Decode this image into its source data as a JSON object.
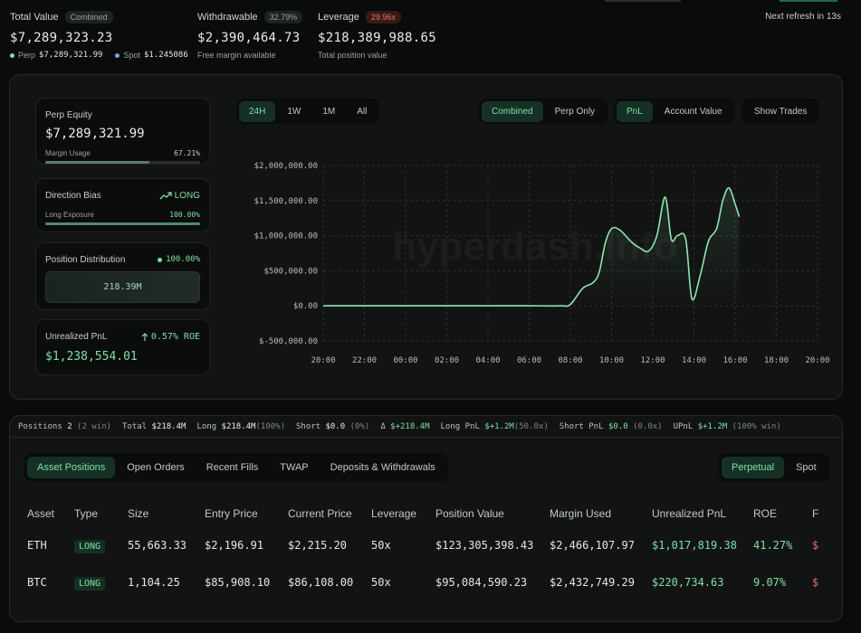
{
  "header": {
    "total_value": {
      "label": "Total Value",
      "badge": "Combined",
      "value": "$7,289,323.23",
      "perp_label": "Perp",
      "perp_value": "$7,289,321.99",
      "spot_label": "Spot",
      "spot_value": "$1.245086"
    },
    "withdrawable": {
      "label": "Withdrawable",
      "badge": "32.79%",
      "value": "$2,390,464.73",
      "note": "Free margin available"
    },
    "leverage": {
      "label": "Leverage",
      "badge": "29.96x",
      "value": "$218,389,988.65",
      "note": "Total position value"
    },
    "refresh": "Next refresh in 13s"
  },
  "panels": {
    "perp_equity": {
      "label": "Perp Equity",
      "value": "$7,289,321.99",
      "margin_label": "Margin Usage",
      "margin_pct": "67.21%",
      "margin_fraction": 0.6721
    },
    "direction": {
      "label": "Direction Bias",
      "value": "LONG",
      "exposure_label": "Long Exposure",
      "exposure_pct": "100.00%",
      "exposure_fraction": 1.0
    },
    "distribution": {
      "label": "Position Distribution",
      "pct": "100.00%",
      "value": "218.39M"
    },
    "upnl": {
      "label": "Unrealized PnL",
      "roe": "0.57% ROE",
      "value": "$1,238,554.01"
    }
  },
  "chart_controls": {
    "ranges": [
      "24H",
      "1W",
      "1M",
      "All"
    ],
    "modes": [
      "Combined",
      "Perp Only"
    ],
    "metrics": [
      "PnL",
      "Account Value"
    ],
    "show_trades": "Show Trades"
  },
  "watermark": "hyperdash.info",
  "chart_data": {
    "type": "line",
    "x": [
      "20:00",
      "22:00",
      "00:00",
      "02:00",
      "04:00",
      "06:00",
      "08:00",
      "10:00",
      "12:00",
      "14:00",
      "16:00",
      "18:00",
      "20:00"
    ],
    "ylim": [
      -500000,
      2000000
    ],
    "yticks": [
      2000000,
      1500000,
      1000000,
      500000,
      0,
      -500000
    ],
    "ytick_labels": [
      "$2,000,000.00",
      "$1,500,000.00",
      "$1,000,000.00",
      "$500,000.00",
      "$0.00",
      "$-500,000.00"
    ],
    "series": [
      {
        "color": "#8ee6b0",
        "points": [
          [
            0,
            0
          ],
          [
            4,
            0
          ],
          [
            8,
            0
          ],
          [
            10,
            0
          ],
          [
            11.5,
            0
          ],
          [
            12,
            20000
          ],
          [
            12.6,
            250000
          ],
          [
            13.1,
            330000
          ],
          [
            13.4,
            480000
          ],
          [
            13.7,
            900000
          ],
          [
            14,
            1100000
          ],
          [
            14.4,
            1080000
          ],
          [
            15,
            900000
          ],
          [
            15.4,
            820000
          ],
          [
            15.8,
            780000
          ],
          [
            16.2,
            1000000
          ],
          [
            16.6,
            1550000
          ],
          [
            16.9,
            950000
          ],
          [
            17.2,
            1000000
          ],
          [
            17.6,
            950000
          ],
          [
            17.9,
            100000
          ],
          [
            18.3,
            430000
          ],
          [
            18.7,
            920000
          ],
          [
            19.1,
            1100000
          ],
          [
            19.4,
            1500000
          ],
          [
            19.7,
            1680000
          ],
          [
            20,
            1450000
          ],
          [
            20.2,
            1270000
          ]
        ]
      }
    ]
  },
  "summary": {
    "positions_label": "Positions",
    "positions_count": "2",
    "positions_win": "(2 win)",
    "total_label": "Total",
    "total_value": "$218.4M",
    "long_label": "Long",
    "long_value": "$218.4M",
    "long_pct": "(100%)",
    "short_label": "Short",
    "short_value": "$0.0",
    "short_pct": "(0%)",
    "delta_label": "Δ",
    "delta_value": "$+218.4M",
    "longpnl_label": "Long PnL",
    "longpnl_value": "$+1.2M",
    "longpnl_x": "(50.0x)",
    "shortpnl_label": "Short PnL",
    "shortpnl_value": "$0.0",
    "shortpnl_x": "(0.0x)",
    "upnl_label": "UPnL",
    "upnl_value": "$+1.2M",
    "upnl_win": "(100% win)"
  },
  "tabs": [
    "Asset Positions",
    "Open Orders",
    "Recent Fills",
    "TWAP",
    "Deposits & Withdrawals"
  ],
  "market_tabs": [
    "Perpetual",
    "Spot"
  ],
  "table": {
    "columns": [
      "Asset",
      "Type",
      "Size",
      "Entry Price",
      "Current Price",
      "Leverage",
      "Position Value",
      "Margin Used",
      "Unrealized PnL",
      "ROE",
      "F"
    ],
    "rows": [
      [
        "ETH",
        "LONG",
        "55,663.33",
        "$2,196.91",
        "$2,215.20",
        "50x",
        "$123,305,398.43",
        "$2,466,107.97",
        "$1,017,819.38",
        "41.27%",
        "$"
      ],
      [
        "BTC",
        "LONG",
        "1,104.25",
        "$85,908.10",
        "$86,108.00",
        "50x",
        "$95,084,590.23",
        "$2,432,749.29",
        "$220,734.63",
        "9.07%",
        "$"
      ]
    ]
  }
}
